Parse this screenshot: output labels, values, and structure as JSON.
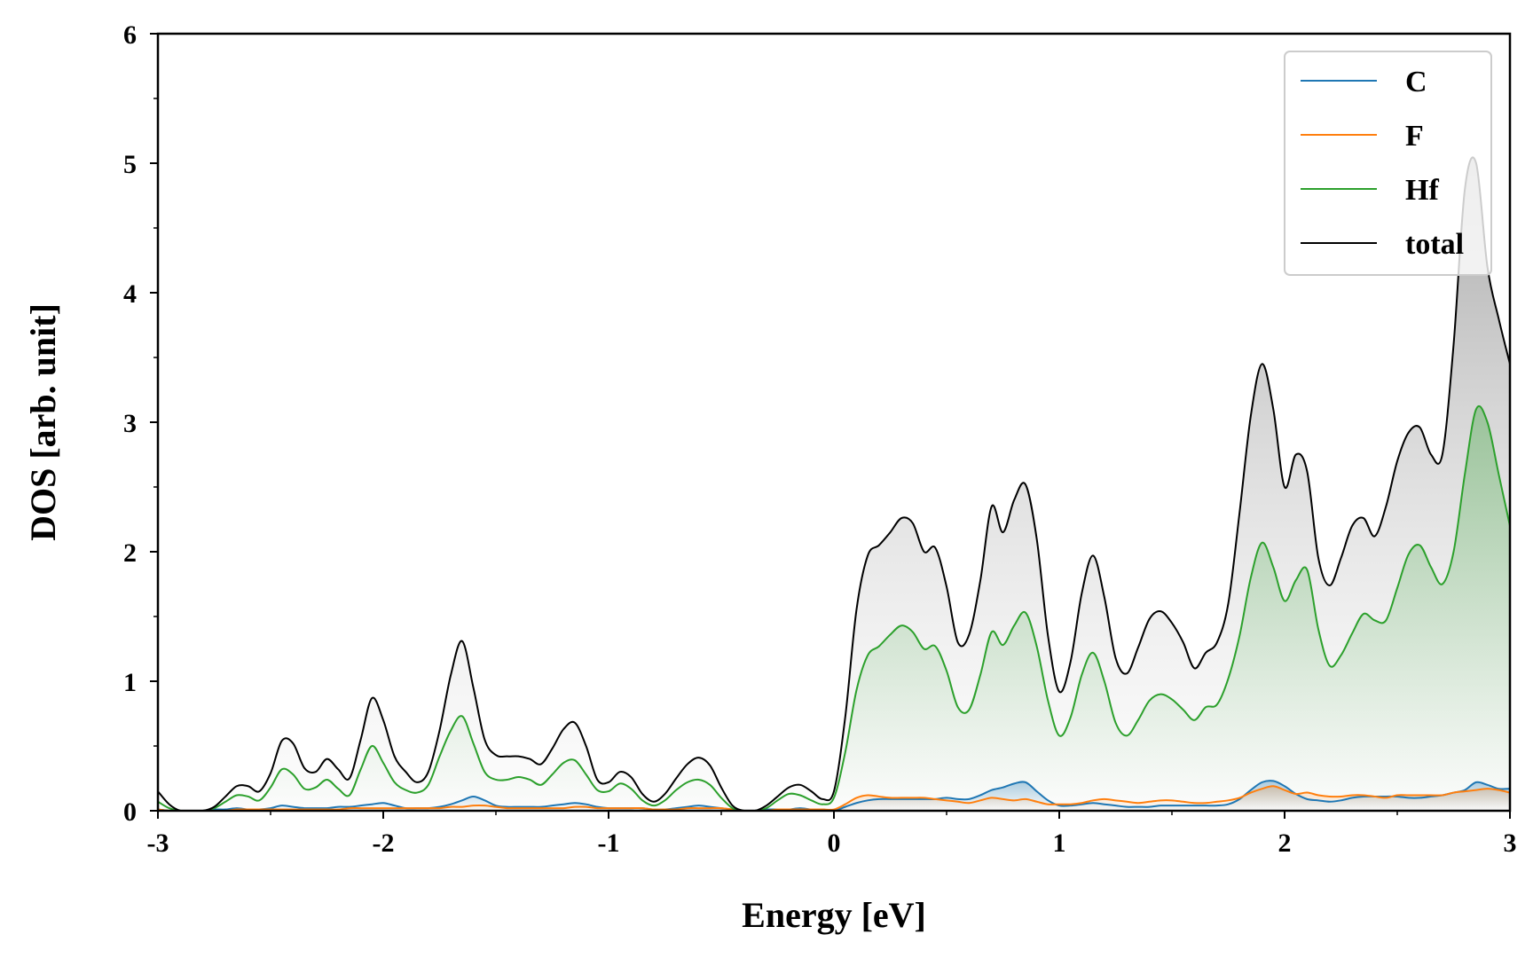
{
  "chart_data": {
    "type": "line",
    "xlabel": "Energy [eV]",
    "ylabel": "DOS [arb. unit]",
    "xlim": [
      -3,
      3
    ],
    "ylim": [
      0,
      6
    ],
    "x_ticks": [
      -3,
      -2,
      -1,
      0,
      1,
      2,
      3
    ],
    "x_tick_labels": [
      "-3",
      "-2",
      "-1",
      "0",
      "1",
      "2",
      "3"
    ],
    "y_ticks": [
      0,
      1,
      2,
      3,
      4,
      5,
      6
    ],
    "y_tick_labels": [
      "0",
      "1",
      "2",
      "3",
      "4",
      "5",
      "6"
    ],
    "grid": false,
    "legend_position": "top-right",
    "x": [
      -3.0,
      -2.95,
      -2.9,
      -2.85,
      -2.8,
      -2.75,
      -2.7,
      -2.65,
      -2.6,
      -2.55,
      -2.5,
      -2.45,
      -2.4,
      -2.35,
      -2.3,
      -2.25,
      -2.2,
      -2.15,
      -2.1,
      -2.05,
      -2.0,
      -1.95,
      -1.9,
      -1.85,
      -1.8,
      -1.75,
      -1.7,
      -1.65,
      -1.6,
      -1.55,
      -1.5,
      -1.45,
      -1.4,
      -1.35,
      -1.3,
      -1.25,
      -1.2,
      -1.15,
      -1.1,
      -1.05,
      -1.0,
      -0.95,
      -0.9,
      -0.85,
      -0.8,
      -0.75,
      -0.7,
      -0.65,
      -0.6,
      -0.55,
      -0.5,
      -0.45,
      -0.4,
      -0.35,
      -0.3,
      -0.25,
      -0.2,
      -0.15,
      -0.1,
      -0.05,
      0.0,
      0.05,
      0.1,
      0.15,
      0.2,
      0.25,
      0.3,
      0.35,
      0.4,
      0.45,
      0.5,
      0.55,
      0.6,
      0.65,
      0.7,
      0.75,
      0.8,
      0.85,
      0.9,
      0.95,
      1.0,
      1.05,
      1.1,
      1.15,
      1.2,
      1.25,
      1.3,
      1.35,
      1.4,
      1.45,
      1.5,
      1.55,
      1.6,
      1.65,
      1.7,
      1.75,
      1.8,
      1.85,
      1.9,
      1.95,
      2.0,
      2.05,
      2.1,
      2.15,
      2.2,
      2.25,
      2.3,
      2.35,
      2.4,
      2.45,
      2.5,
      2.55,
      2.6,
      2.65,
      2.7,
      2.75,
      2.8,
      2.85,
      2.9,
      2.95,
      3.0
    ],
    "series": [
      {
        "name": "C",
        "color": "#1f77b4",
        "values": [
          0.01,
          0.0,
          0.0,
          0.0,
          0.0,
          0.01,
          0.01,
          0.02,
          0.01,
          0.01,
          0.02,
          0.04,
          0.03,
          0.02,
          0.02,
          0.02,
          0.03,
          0.03,
          0.04,
          0.05,
          0.06,
          0.04,
          0.02,
          0.02,
          0.02,
          0.03,
          0.05,
          0.08,
          0.11,
          0.08,
          0.04,
          0.03,
          0.03,
          0.03,
          0.03,
          0.04,
          0.05,
          0.06,
          0.05,
          0.03,
          0.02,
          0.02,
          0.02,
          0.02,
          0.01,
          0.01,
          0.02,
          0.03,
          0.04,
          0.03,
          0.02,
          0.01,
          0.0,
          0.0,
          0.01,
          0.01,
          0.01,
          0.02,
          0.01,
          0.01,
          0.0,
          0.03,
          0.06,
          0.08,
          0.09,
          0.09,
          0.09,
          0.09,
          0.09,
          0.09,
          0.1,
          0.09,
          0.09,
          0.12,
          0.16,
          0.18,
          0.21,
          0.22,
          0.15,
          0.08,
          0.04,
          0.04,
          0.05,
          0.06,
          0.05,
          0.04,
          0.03,
          0.03,
          0.03,
          0.04,
          0.04,
          0.04,
          0.04,
          0.04,
          0.04,
          0.05,
          0.09,
          0.16,
          0.22,
          0.23,
          0.19,
          0.13,
          0.09,
          0.08,
          0.07,
          0.08,
          0.1,
          0.11,
          0.11,
          0.11,
          0.11,
          0.1,
          0.1,
          0.11,
          0.12,
          0.14,
          0.16,
          0.22,
          0.2,
          0.17,
          0.17
        ]
      },
      {
        "name": "F",
        "color": "#ff7f0e",
        "values": [
          0.01,
          0.0,
          0.0,
          0.0,
          0.0,
          0.0,
          0.0,
          0.01,
          0.01,
          0.01,
          0.01,
          0.01,
          0.01,
          0.01,
          0.01,
          0.01,
          0.01,
          0.02,
          0.02,
          0.02,
          0.02,
          0.02,
          0.02,
          0.02,
          0.02,
          0.02,
          0.03,
          0.03,
          0.04,
          0.04,
          0.03,
          0.02,
          0.02,
          0.02,
          0.02,
          0.02,
          0.02,
          0.03,
          0.03,
          0.02,
          0.02,
          0.02,
          0.02,
          0.02,
          0.01,
          0.01,
          0.01,
          0.02,
          0.02,
          0.02,
          0.02,
          0.01,
          0.0,
          0.0,
          0.0,
          0.01,
          0.01,
          0.01,
          0.01,
          0.01,
          0.01,
          0.05,
          0.1,
          0.12,
          0.11,
          0.1,
          0.1,
          0.1,
          0.1,
          0.09,
          0.08,
          0.07,
          0.06,
          0.08,
          0.1,
          0.09,
          0.08,
          0.09,
          0.07,
          0.05,
          0.05,
          0.05,
          0.06,
          0.08,
          0.09,
          0.08,
          0.07,
          0.06,
          0.07,
          0.08,
          0.08,
          0.07,
          0.06,
          0.06,
          0.07,
          0.08,
          0.1,
          0.14,
          0.17,
          0.19,
          0.16,
          0.13,
          0.14,
          0.12,
          0.11,
          0.11,
          0.12,
          0.12,
          0.11,
          0.1,
          0.12,
          0.12,
          0.12,
          0.12,
          0.12,
          0.14,
          0.15,
          0.16,
          0.17,
          0.16,
          0.14
        ]
      },
      {
        "name": "Hf",
        "color": "#2ca02c",
        "values": [
          0.07,
          0.02,
          0.0,
          0.0,
          0.0,
          0.02,
          0.07,
          0.12,
          0.11,
          0.08,
          0.18,
          0.32,
          0.28,
          0.17,
          0.18,
          0.24,
          0.17,
          0.12,
          0.32,
          0.5,
          0.37,
          0.22,
          0.16,
          0.14,
          0.2,
          0.42,
          0.62,
          0.73,
          0.52,
          0.3,
          0.24,
          0.24,
          0.26,
          0.24,
          0.2,
          0.28,
          0.37,
          0.39,
          0.28,
          0.16,
          0.15,
          0.21,
          0.17,
          0.08,
          0.04,
          0.08,
          0.16,
          0.22,
          0.24,
          0.2,
          0.1,
          0.02,
          0.0,
          0.0,
          0.02,
          0.08,
          0.13,
          0.12,
          0.08,
          0.05,
          0.1,
          0.45,
          0.93,
          1.2,
          1.27,
          1.36,
          1.43,
          1.38,
          1.25,
          1.27,
          1.08,
          0.8,
          0.78,
          1.05,
          1.38,
          1.28,
          1.43,
          1.53,
          1.27,
          0.85,
          0.58,
          0.72,
          1.05,
          1.22,
          1.0,
          0.68,
          0.58,
          0.7,
          0.85,
          0.9,
          0.86,
          0.78,
          0.7,
          0.8,
          0.82,
          1.02,
          1.35,
          1.8,
          2.07,
          1.88,
          1.62,
          1.78,
          1.86,
          1.4,
          1.12,
          1.2,
          1.37,
          1.52,
          1.47,
          1.47,
          1.72,
          1.98,
          2.05,
          1.88,
          1.75,
          2.0,
          2.6,
          3.1,
          3.0,
          2.6,
          2.2
        ]
      },
      {
        "name": "total",
        "color": "#000000",
        "values": [
          0.15,
          0.05,
          0.0,
          0.0,
          0.0,
          0.03,
          0.11,
          0.19,
          0.19,
          0.15,
          0.29,
          0.54,
          0.52,
          0.33,
          0.3,
          0.4,
          0.32,
          0.25,
          0.55,
          0.87,
          0.7,
          0.42,
          0.3,
          0.22,
          0.3,
          0.62,
          1.05,
          1.31,
          0.95,
          0.55,
          0.43,
          0.42,
          0.42,
          0.4,
          0.36,
          0.48,
          0.63,
          0.68,
          0.5,
          0.24,
          0.22,
          0.3,
          0.26,
          0.13,
          0.07,
          0.13,
          0.25,
          0.36,
          0.41,
          0.35,
          0.18,
          0.04,
          0.0,
          0.0,
          0.04,
          0.11,
          0.18,
          0.2,
          0.15,
          0.09,
          0.15,
          0.72,
          1.55,
          1.97,
          2.05,
          2.15,
          2.26,
          2.22,
          2.0,
          2.03,
          1.73,
          1.3,
          1.36,
          1.78,
          2.35,
          2.15,
          2.4,
          2.52,
          2.1,
          1.35,
          0.92,
          1.15,
          1.68,
          1.97,
          1.65,
          1.18,
          1.06,
          1.26,
          1.48,
          1.54,
          1.45,
          1.3,
          1.1,
          1.22,
          1.3,
          1.6,
          2.3,
          3.05,
          3.45,
          3.1,
          2.5,
          2.75,
          2.62,
          1.95,
          1.74,
          1.95,
          2.2,
          2.26,
          2.12,
          2.35,
          2.7,
          2.92,
          2.96,
          2.75,
          2.75,
          3.6,
          4.8,
          5.0,
          4.2,
          3.8,
          3.45
        ]
      }
    ]
  }
}
